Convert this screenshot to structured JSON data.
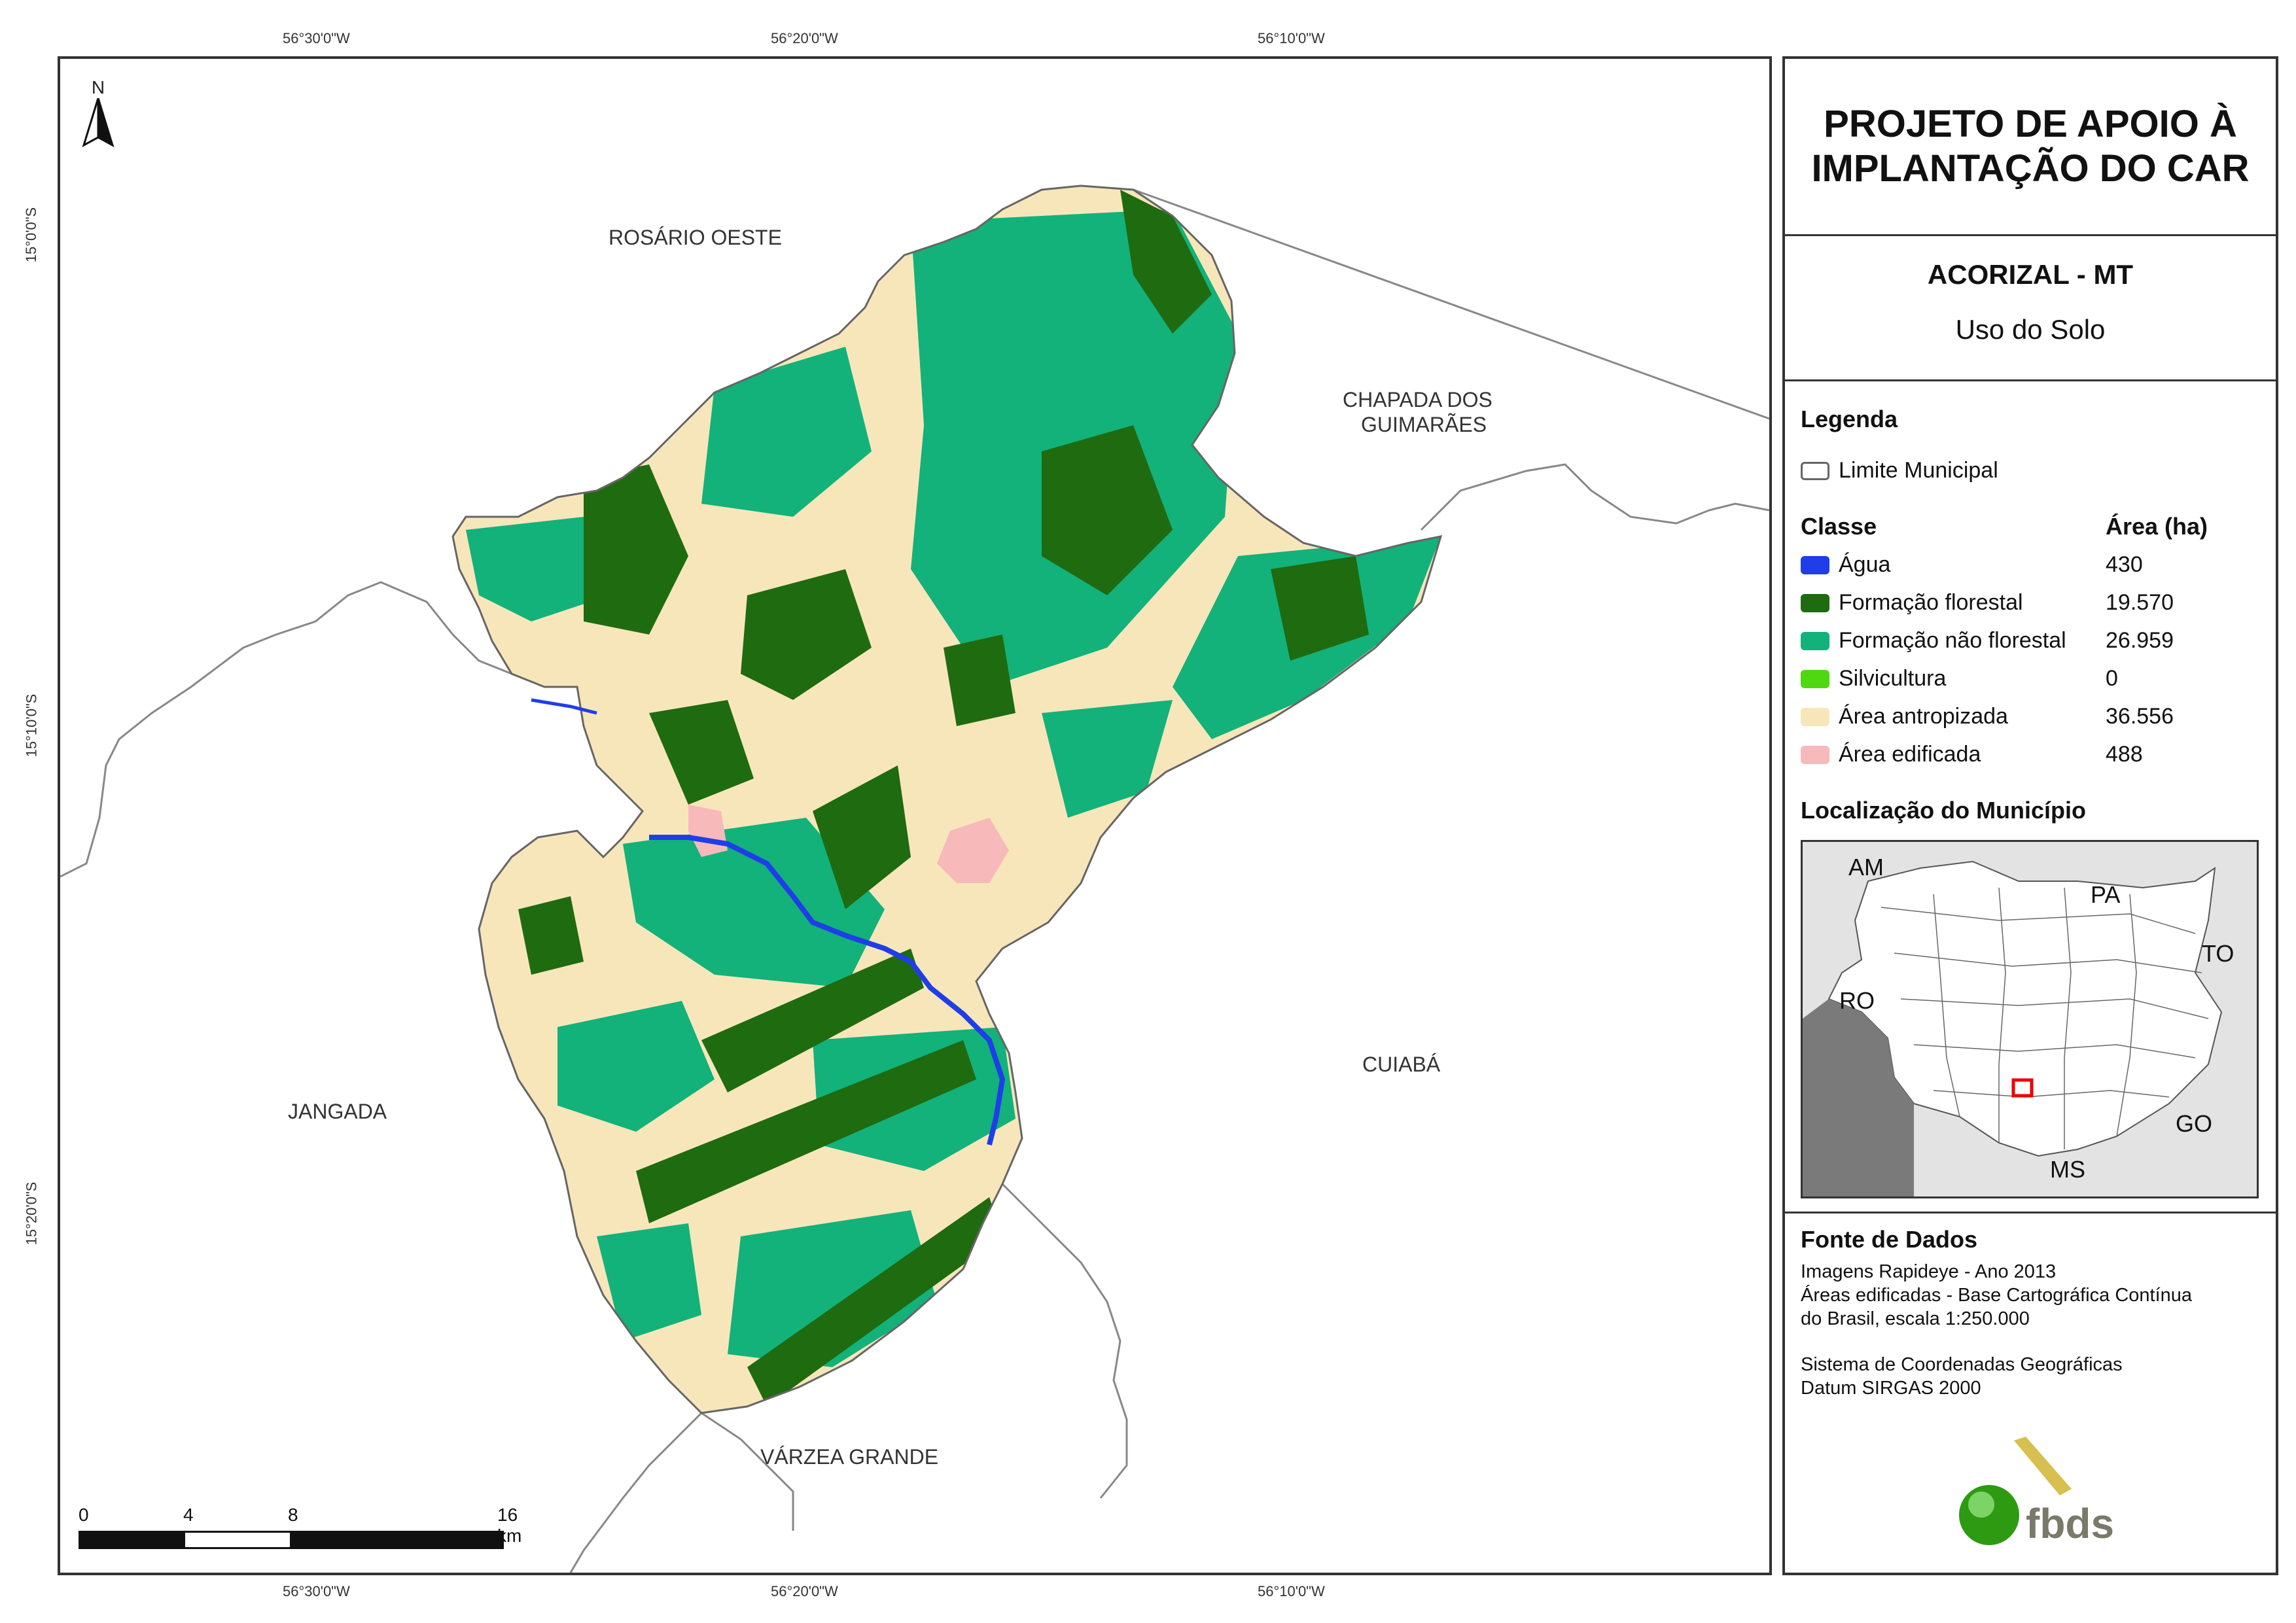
{
  "title": {
    "line1": "PROJETO DE APOIO À",
    "line2": "IMPLANTAÇÃO DO CAR"
  },
  "municipality": "ACORIZAL - MT",
  "subtitle": "Uso do Solo",
  "legend": {
    "heading": "Legenda",
    "boundary_label": "Limite Municipal",
    "class_header": "Classe",
    "area_header": "Área (ha)",
    "classes": [
      {
        "label": "Água",
        "area": "430",
        "color": "#1f3ee8"
      },
      {
        "label": "Formação florestal",
        "area": "19.570",
        "color": "#1f6b0f"
      },
      {
        "label": "Formação não florestal",
        "area": "26.959",
        "color": "#12b27a"
      },
      {
        "label": "Silvicultura",
        "area": "0",
        "color": "#4fd80f"
      },
      {
        "label": "Área antropizada",
        "area": "36.556",
        "color": "#f8e6bb"
      },
      {
        "label": "Área edificada",
        "area": "488",
        "color": "#f8b9bb"
      }
    ]
  },
  "location": {
    "heading": "Localização do Município",
    "states": [
      "AM",
      "PA",
      "TO",
      "RO",
      "GO",
      "MS"
    ]
  },
  "sources": {
    "heading": "Fonte de Dados",
    "line1": "Imagens Rapideye - Ano 2013",
    "line2": "Áreas edificadas - Base Cartográfica Contínua",
    "line3": "do Brasil, escala 1:250.000",
    "line4": "Sistema de Coordenadas Geográficas",
    "line5": "Datum SIRGAS 2000"
  },
  "logo_text": "fbds",
  "map": {
    "north": "N",
    "lon_labels": [
      "56°30'0\"W",
      "56°20'0\"W",
      "56°10'0\"W"
    ],
    "lat_labels": [
      "15°0'0\"S",
      "15°10'0\"S",
      "15°20'0\"S"
    ],
    "neighbors": {
      "rosario": "ROSÁRIO OESTE",
      "chapada_1": "CHAPADA DOS",
      "chapada_2": "GUIMARÃES",
      "jangada": "JANGADA",
      "cuiaba": "CUIABÁ",
      "varzea": "VÁRZEA GRANDE"
    },
    "scale": {
      "ticks": [
        "0",
        "4",
        "8",
        "16 km"
      ]
    }
  }
}
